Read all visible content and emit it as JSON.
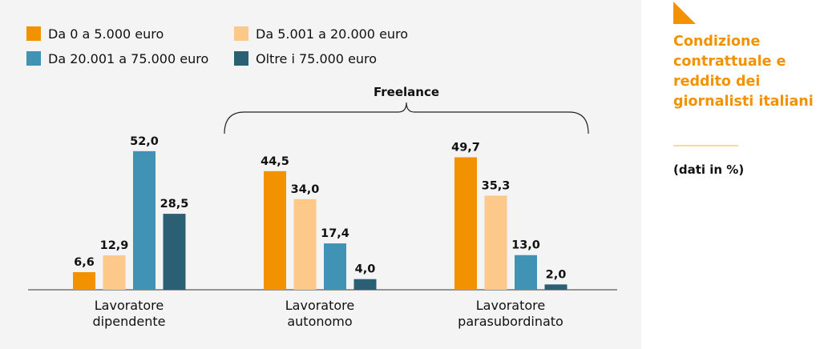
{
  "chart_data": {
    "type": "bar",
    "title": "Condizione contrattuale e reddito dei giornalisti italiani",
    "subtitle": "(dati in %)",
    "categories": [
      [
        "Lavoratore",
        "dipendente"
      ],
      [
        "Lavoratore",
        "autonomo"
      ],
      [
        "Lavoratore",
        "parasubordinato"
      ]
    ],
    "bracket_label": "Freelance",
    "series": [
      {
        "name": "Da 0 a 5.000 euro",
        "color": "#f39200",
        "values": [
          6.6,
          44.5,
          49.7
        ],
        "labels": [
          "6,6",
          "44,5",
          "49,7"
        ]
      },
      {
        "name": "Da 5.001 a 20.000 euro",
        "color": "#fcc98b",
        "values": [
          12.9,
          34.0,
          35.3
        ],
        "labels": [
          "12,9",
          "34,0",
          "35,3"
        ]
      },
      {
        "name": "Da 20.001 a 75.000 euro",
        "color": "#4193b5",
        "values": [
          52.0,
          17.4,
          13.0
        ],
        "labels": [
          "52,0",
          "17,4",
          "13,0"
        ]
      },
      {
        "name": "Oltre i 75.000 euro",
        "color": "#2a5f74",
        "values": [
          28.5,
          4.0,
          2.0
        ],
        "labels": [
          "28,5",
          "4,0",
          "2,0"
        ]
      }
    ],
    "ylim": [
      0,
      55
    ],
    "legend": "top-left",
    "grid": false
  }
}
